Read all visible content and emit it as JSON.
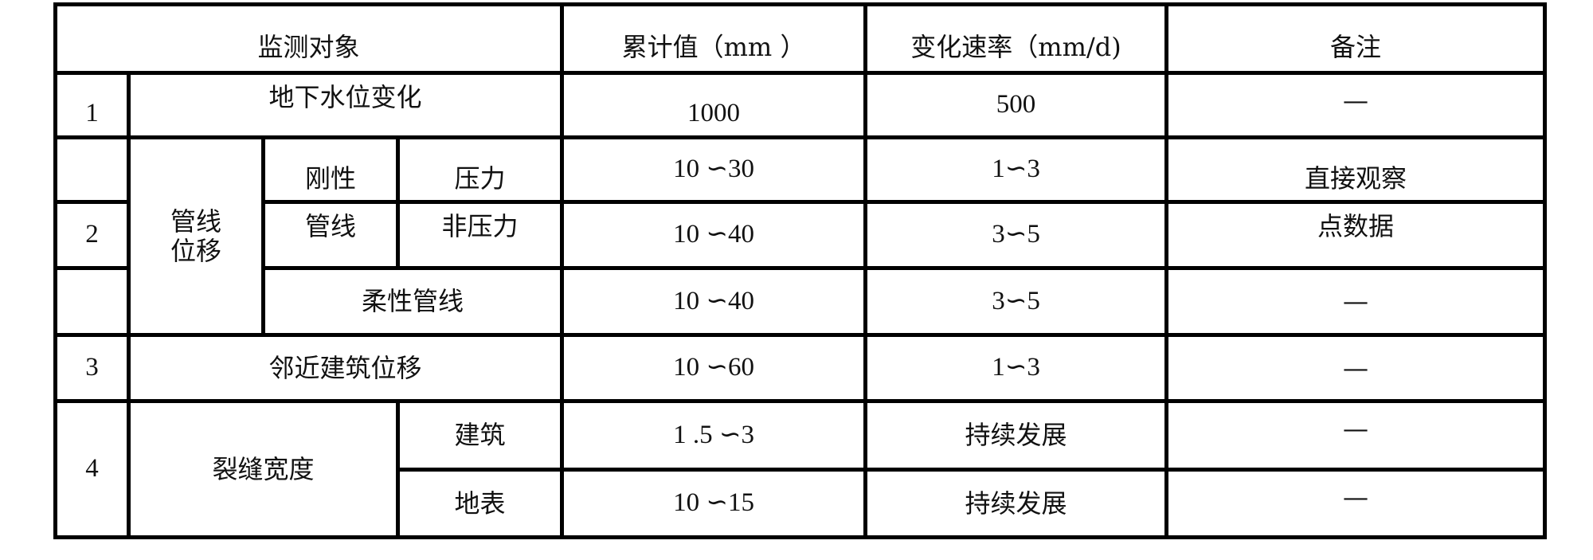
{
  "header": {
    "object": "监测对象",
    "cumulative": "累计值（mm ）",
    "rate": "变化速率（mm/d)",
    "remark": "备注"
  },
  "rows": [
    {
      "no": "1",
      "object": "地下水位变化",
      "cumulative": "1000",
      "rate": "500",
      "remark": "—"
    },
    {
      "no": "",
      "group": "管线\n位移",
      "sub1": "刚性",
      "sub2": "压力",
      "cumulative": "10 ∽30",
      "rate": "1∽3",
      "remark": "直接观察"
    },
    {
      "no": "2",
      "sub1": "管线",
      "sub2": "非压力",
      "cumulative": "10 ∽40",
      "rate": "3∽5",
      "remark": "点数据"
    },
    {
      "no": "",
      "sub": "柔性管线",
      "cumulative": "10 ∽40",
      "rate": "3∽5",
      "remark": "—"
    },
    {
      "no": "3",
      "object": "邻近建筑位移",
      "cumulative": "10 ∽60",
      "rate": "1∽3",
      "remark": "—"
    },
    {
      "no": "4",
      "group": "裂缝宽度",
      "sub2": "建筑",
      "cumulative": "1 .5 ∽3",
      "rate": "持续发展",
      "remark": "—"
    },
    {
      "sub2": "地表",
      "cumulative": "10 ∽15",
      "rate": "持续发展",
      "remark": "—"
    }
  ]
}
